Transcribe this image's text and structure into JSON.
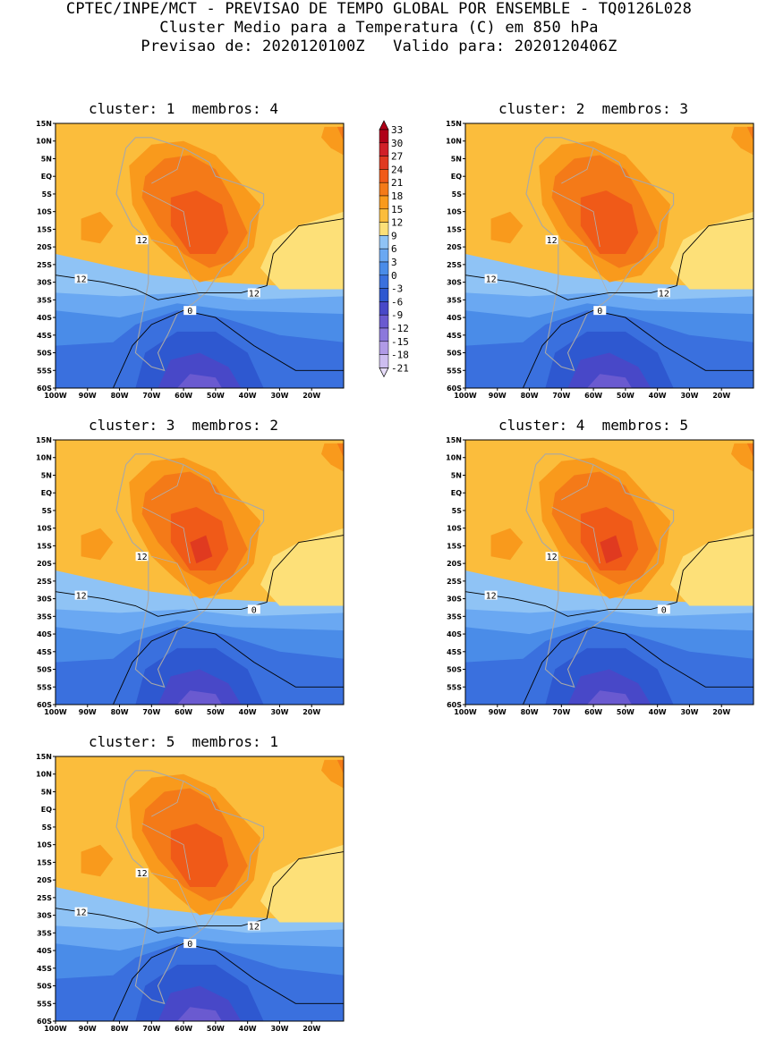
{
  "header": {
    "line1": "CPTEC/INPE/MCT - PREVISAO DE TEMPO GLOBAL POR ENSEMBLE - TQ0126L028",
    "line2": "Cluster Medio para a Temperatura (C) em 850 hPa",
    "line3": "Previsao de: 2020120100Z   Valido para: 2020120406Z"
  },
  "panels": [
    {
      "title": "cluster: 1  membros: 4",
      "contour_labels": [
        "12",
        "12",
        "12",
        "0"
      ]
    },
    {
      "title": "cluster: 2  membros: 3",
      "contour_labels": [
        "12",
        "12",
        "12",
        "0"
      ]
    },
    {
      "title": "cluster: 3  membros: 2",
      "contour_labels": [
        "12",
        "12",
        "0"
      ]
    },
    {
      "title": "cluster: 4  membros: 5",
      "contour_labels": [
        "12",
        "12",
        "0"
      ]
    },
    {
      "title": "cluster: 5  membros: 1",
      "contour_labels": [
        "12",
        "12",
        "12",
        "0"
      ]
    }
  ],
  "axes": {
    "lat_labels": [
      "15N",
      "10N",
      "5N",
      "EQ",
      "5S",
      "10S",
      "15S",
      "20S",
      "25S",
      "30S",
      "35S",
      "40S",
      "45S",
      "50S",
      "55S",
      "60S"
    ],
    "lon_labels": [
      "100W",
      "90W",
      "80W",
      "70W",
      "60W",
      "50W",
      "40W",
      "30W",
      "20W"
    ]
  },
  "colorbar": {
    "levels": [
      "33",
      "30",
      "27",
      "24",
      "21",
      "18",
      "15",
      "12",
      "9",
      "6",
      "3",
      "0",
      "-3",
      "-6",
      "-9",
      "-12",
      "-15",
      "-18",
      "-21"
    ],
    "colors": [
      "#b00018",
      "#d02028",
      "#e03a20",
      "#f05a18",
      "#f47a18",
      "#f99a1c",
      "#fbbd3c",
      "#fde078",
      "#8fc3f5",
      "#6aa8f2",
      "#4a8ce8",
      "#3a70de",
      "#2e58d0",
      "#4848c8",
      "#6a5ad0",
      "#8c78dc",
      "#b09ae6",
      "#cdbdf0",
      "#e6dcf8"
    ]
  },
  "chart_data": {
    "type": "heatmap",
    "variable": "Temperatura (C) em 850 hPa",
    "contour_levels_drawn": [
      0,
      12
    ],
    "lon_range": [
      "100W",
      "10W"
    ],
    "lat_range": [
      "60S",
      "15N"
    ],
    "clusters": [
      {
        "cluster": 1,
        "membros": 4
      },
      {
        "cluster": 2,
        "membros": 3
      },
      {
        "cluster": 3,
        "membros": 2
      },
      {
        "cluster": 4,
        "membros": 5
      },
      {
        "cluster": 5,
        "membros": 1
      }
    ]
  }
}
